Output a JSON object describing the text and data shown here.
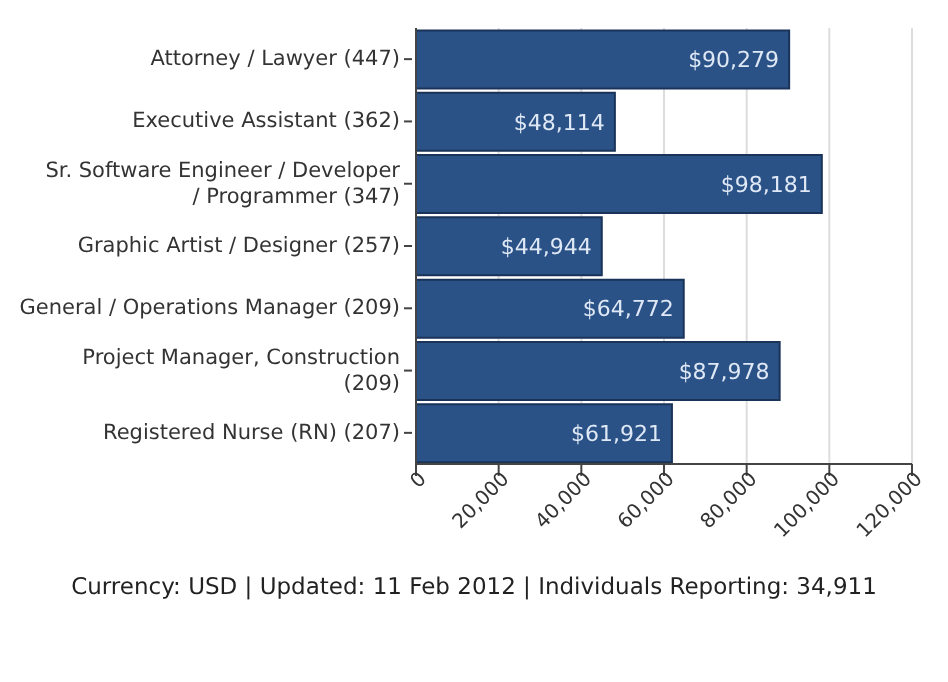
{
  "chart_data": {
    "type": "bar",
    "orientation": "horizontal",
    "categories": [
      "Attorney / Lawyer (447)",
      "Executive Assistant (362)",
      "Sr. Software Engineer / Developer / Programmer (347)",
      "Graphic Artist / Designer (257)",
      "General / Operations Manager (209)",
      "Project Manager, Construction (209)",
      "Registered Nurse (RN) (207)"
    ],
    "values": [
      90279,
      48114,
      98181,
      44944,
      64772,
      87978,
      61921
    ],
    "value_labels": [
      "$90,279",
      "$48,114",
      "$98,181",
      "$44,944",
      "$64,772",
      "$87,978",
      "$61,921"
    ],
    "color": "#2b5287",
    "xlim": [
      0,
      120000
    ],
    "xticks": [
      0,
      {
        "value": 20000,
        "label": "20,000"
      },
      {
        "value": 40000,
        "label": "40,000"
      },
      {
        "value": 60000,
        "label": "60,000"
      },
      {
        "value": 80000,
        "label": "80,000"
      },
      {
        "value": 100000,
        "label": "100,000"
      },
      {
        "value": 120000,
        "label": "120,000"
      }
    ],
    "grid": "x",
    "annotations": [
      "Currency: USD  |  Updated: 11 Feb 2012  |  Individuals Reporting: 34,911"
    ]
  }
}
